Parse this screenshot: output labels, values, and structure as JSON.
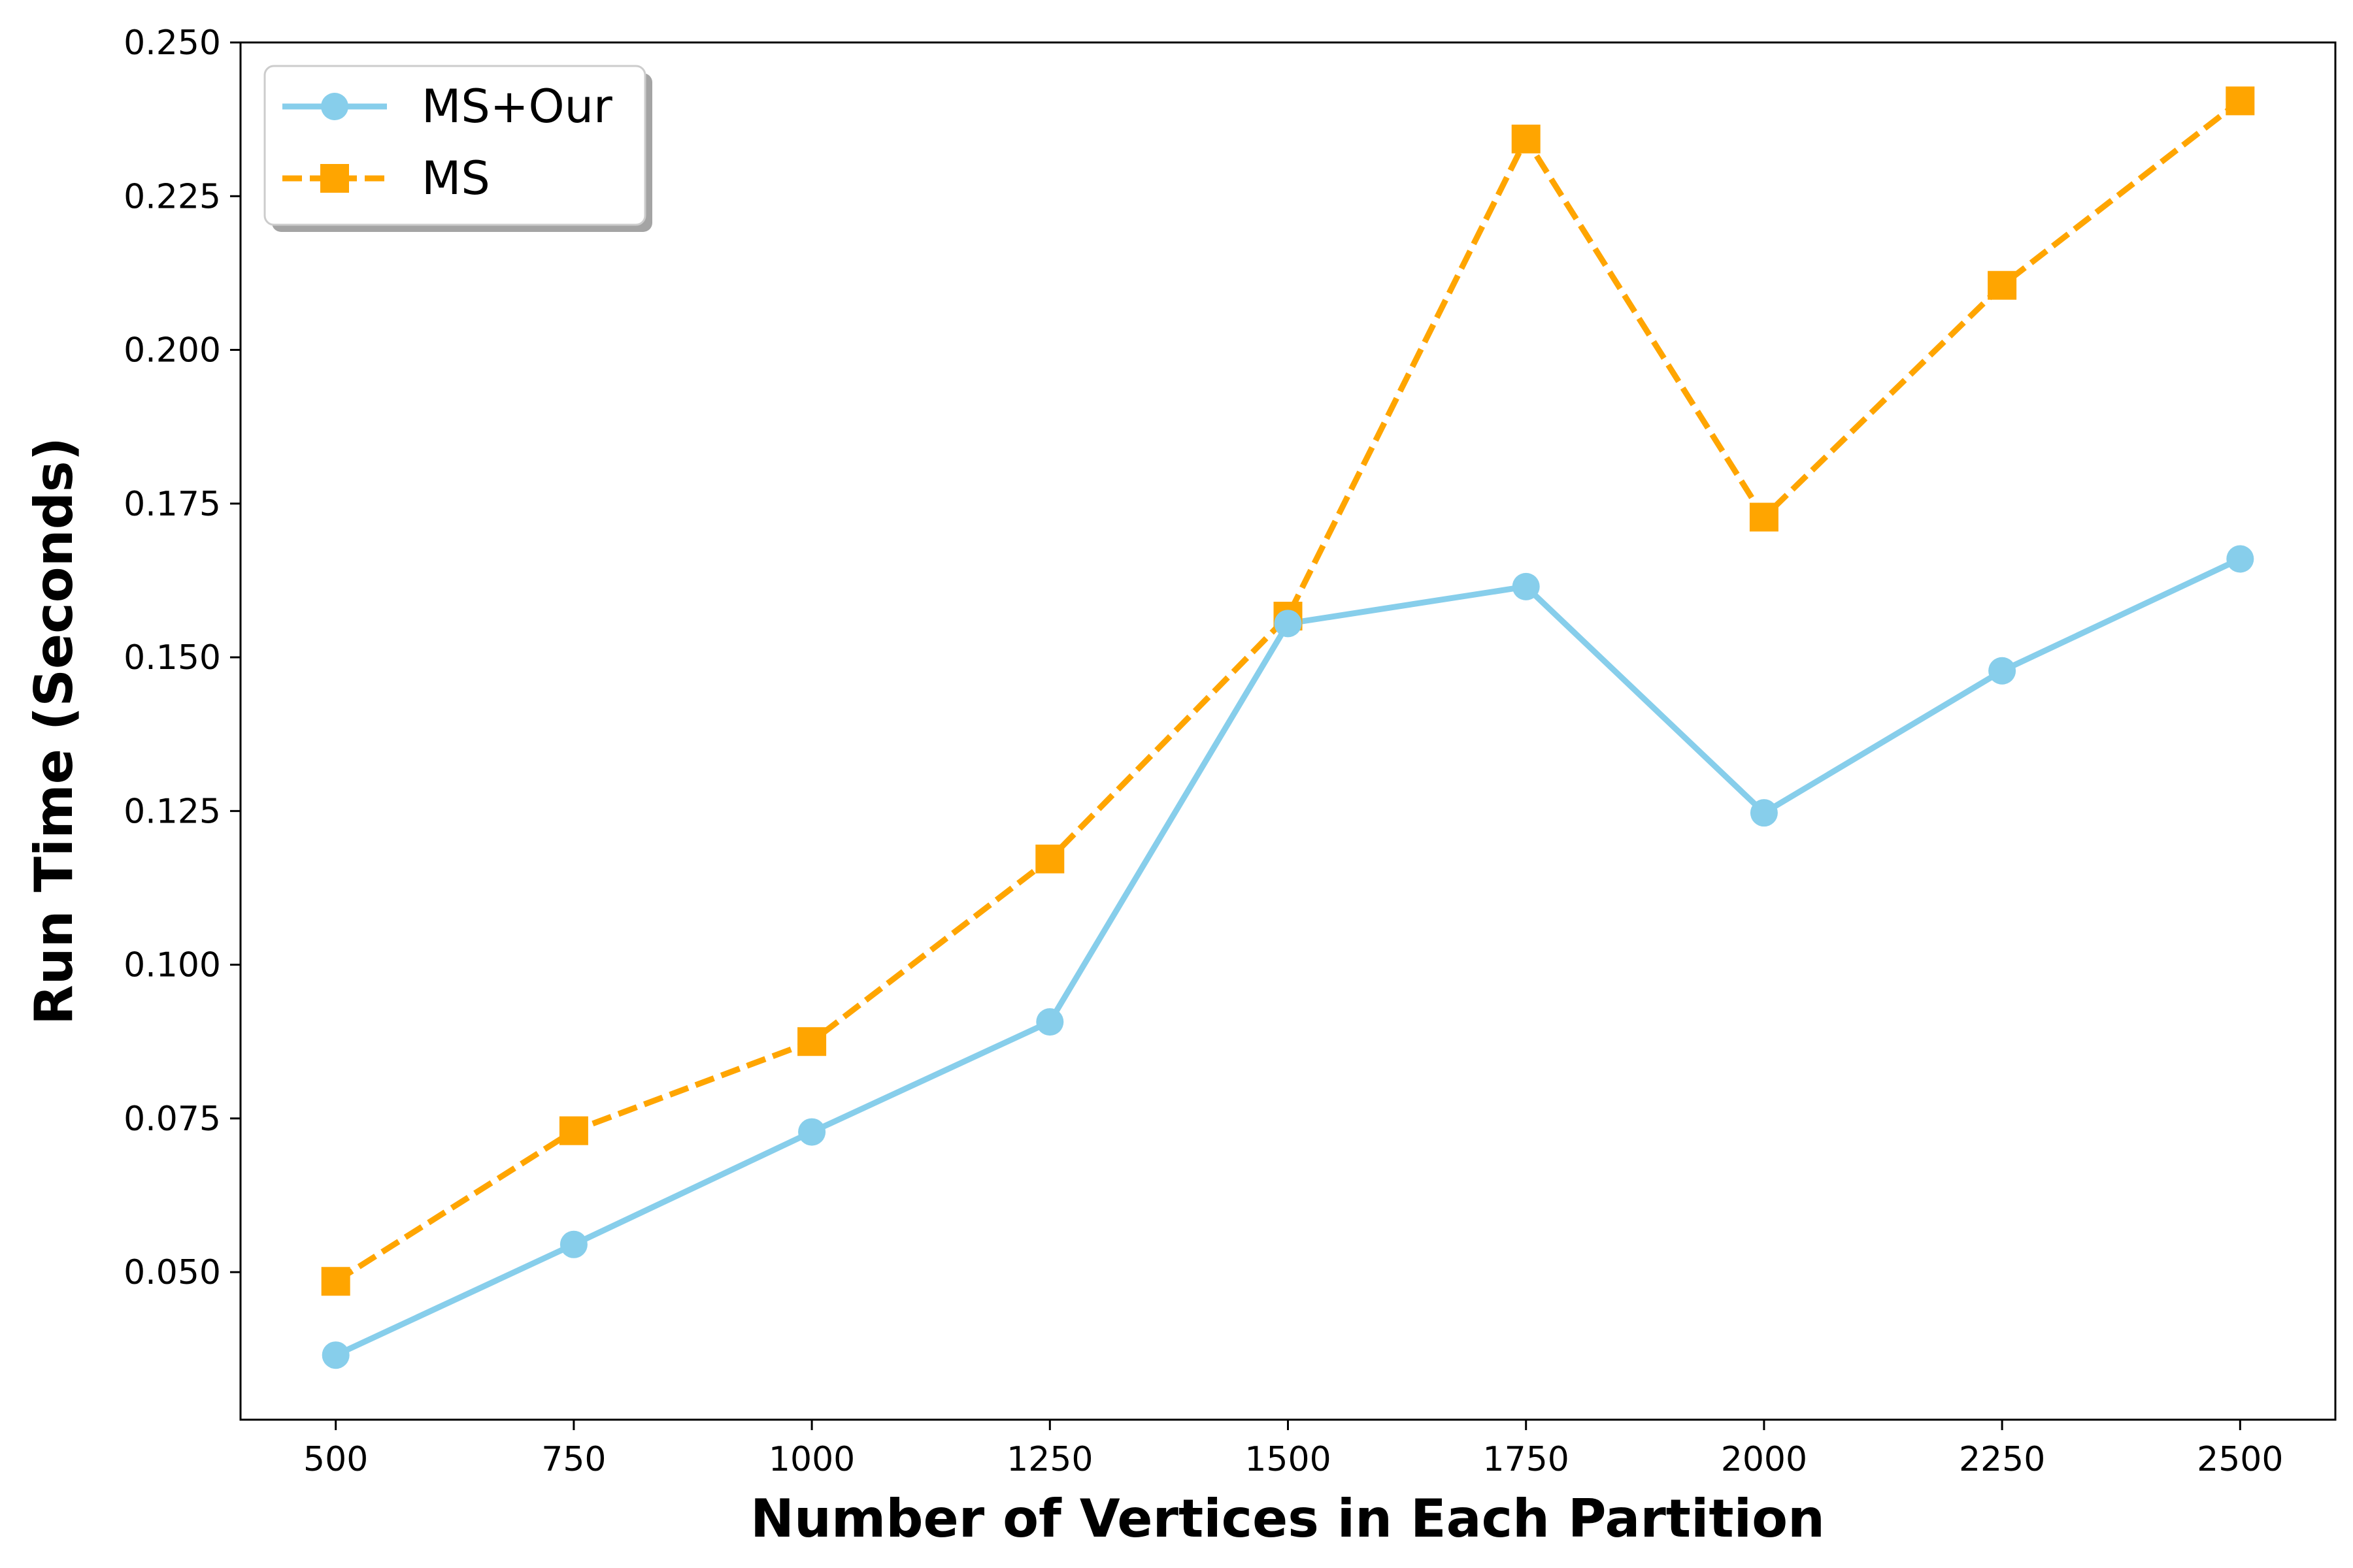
{
  "chart_data": {
    "type": "line",
    "title": "",
    "xlabel": "Number of Vertices in Each Partition",
    "ylabel": "Run Time (Seconds)",
    "x": [
      500,
      750,
      1000,
      1250,
      1500,
      1750,
      2000,
      2250,
      2500
    ],
    "xlim": [
      400,
      2600
    ],
    "ylim": [
      0.026,
      0.25
    ],
    "xticks": [
      "500",
      "750",
      "1000",
      "1250",
      "1500",
      "1750",
      "2000",
      "2250",
      "2500"
    ],
    "yticks": [
      "0.050",
      "0.075",
      "0.100",
      "0.125",
      "0.150",
      "0.175",
      "0.200",
      "0.225",
      "0.250"
    ],
    "grid": false,
    "legend_position": "top-left",
    "series": [
      {
        "name": "MS+Our",
        "color": "#87CEEB",
        "style": "solid",
        "marker": "circle",
        "values": [
          0.0365,
          0.0545,
          0.0728,
          0.0907,
          0.1555,
          0.1615,
          0.1247,
          0.1478,
          0.166
        ]
      },
      {
        "name": "MS",
        "color": "#FFA500",
        "style": "dashed",
        "marker": "square",
        "values": [
          0.0485,
          0.073,
          0.0875,
          0.1172,
          0.1567,
          0.2343,
          0.1728,
          0.2105,
          0.2405
        ]
      }
    ]
  }
}
